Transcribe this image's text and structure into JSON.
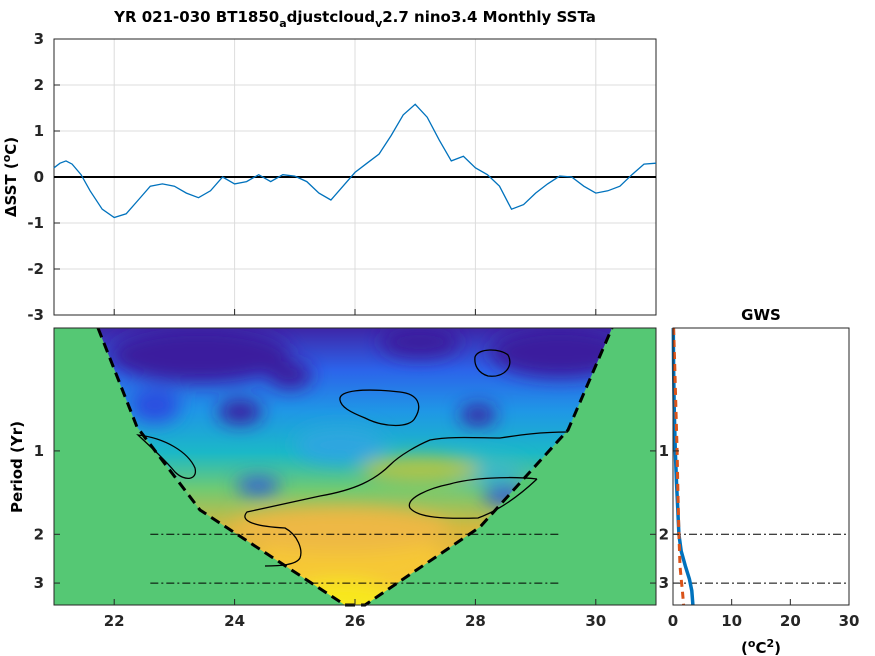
{
  "chart_data": [
    {
      "type": "line",
      "title_parts": [
        "YR 021-030 BT1850",
        "a",
        "djustcloud",
        "v",
        "2.7 nino3.4 Monthly SSTa"
      ],
      "xlabel": "",
      "ylabel_parts": [
        "ΔSST (",
        "o",
        "C)"
      ],
      "xlim": [
        21,
        31
      ],
      "ylim": [
        -3,
        3
      ],
      "xticks": [
        22,
        24,
        26,
        28,
        30
      ],
      "yticks": [
        -3,
        -2,
        -1,
        0,
        1,
        2,
        3
      ],
      "grid": true,
      "zero_line": 0,
      "series": [
        {
          "color": "#0072BD",
          "x": [
            21.0,
            21.1,
            21.2,
            21.3,
            21.45,
            21.6,
            21.8,
            22.0,
            22.2,
            22.4,
            22.6,
            22.8,
            23.0,
            23.2,
            23.4,
            23.6,
            23.8,
            24.0,
            24.2,
            24.4,
            24.6,
            24.8,
            25.0,
            25.2,
            25.4,
            25.6,
            25.8,
            26.0,
            26.2,
            26.4,
            26.6,
            26.8,
            27.0,
            27.2,
            27.4,
            27.6,
            27.8,
            28.0,
            28.2,
            28.4,
            28.6,
            28.8,
            29.0,
            29.2,
            29.4,
            29.6,
            29.8,
            30.0,
            30.2,
            30.4,
            30.6,
            30.8,
            31.0
          ],
          "y": [
            0.2,
            0.3,
            0.35,
            0.28,
            0.05,
            -0.3,
            -0.7,
            -0.88,
            -0.8,
            -0.5,
            -0.2,
            -0.15,
            -0.2,
            -0.35,
            -0.45,
            -0.3,
            0.0,
            -0.15,
            -0.1,
            0.05,
            -0.1,
            0.05,
            0.02,
            -0.1,
            -0.35,
            -0.5,
            -0.2,
            0.1,
            0.3,
            0.5,
            0.9,
            1.35,
            1.58,
            1.3,
            0.8,
            0.35,
            0.45,
            0.2,
            0.05,
            -0.2,
            -0.7,
            -0.6,
            -0.35,
            -0.15,
            0.02,
            0.0,
            -0.2,
            -0.35,
            -0.3,
            -0.2,
            0.05,
            0.28,
            0.3
          ]
        }
      ]
    },
    {
      "type": "heatmap",
      "title": "",
      "xlabel": "",
      "ylabel": "Period (Yr)",
      "xlim": [
        21,
        31
      ],
      "xticks": [
        22,
        24,
        26,
        28,
        30
      ],
      "yscale": "log",
      "yticks": [
        1,
        2,
        3
      ],
      "ylim": [
        0.36,
        3.6
      ],
      "colormap": "parula",
      "reference_lines": [
        2,
        3
      ],
      "cone_of_influence": true,
      "significance_contours": 5,
      "colors": {
        "outside_cone": "#55c874",
        "coi_line": "#000000"
      }
    },
    {
      "type": "line",
      "title": "GWS",
      "xlabel_parts": [
        "(",
        "o",
        "C",
        "2",
        ")"
      ],
      "ylabel": "",
      "xlim": [
        0,
        30
      ],
      "xticks": [
        0,
        10,
        20,
        30
      ],
      "yticks": [
        1,
        2,
        3
      ],
      "yscale": "log",
      "reference_lines": [
        2,
        3
      ],
      "series": [
        {
          "color": "#0072BD",
          "style": "solid",
          "period": [
            0.36,
            0.5,
            0.7,
            1.0,
            1.3,
            1.6,
            2.0,
            2.3,
            2.6,
            2.9,
            3.2,
            3.6
          ],
          "power": [
            0.05,
            0.1,
            0.2,
            0.4,
            0.6,
            0.8,
            1.0,
            1.4,
            2.1,
            2.8,
            3.2,
            3.4
          ]
        },
        {
          "color": "#D95319",
          "style": "dashed",
          "period": [
            0.36,
            0.5,
            0.7,
            1.0,
            1.3,
            1.6,
            2.0,
            2.3,
            2.6,
            2.9,
            3.2,
            3.6
          ],
          "power": [
            0.1,
            0.3,
            0.5,
            0.7,
            0.8,
            0.9,
            1.0,
            1.1,
            1.2,
            1.4,
            1.6,
            1.8
          ]
        }
      ]
    }
  ]
}
